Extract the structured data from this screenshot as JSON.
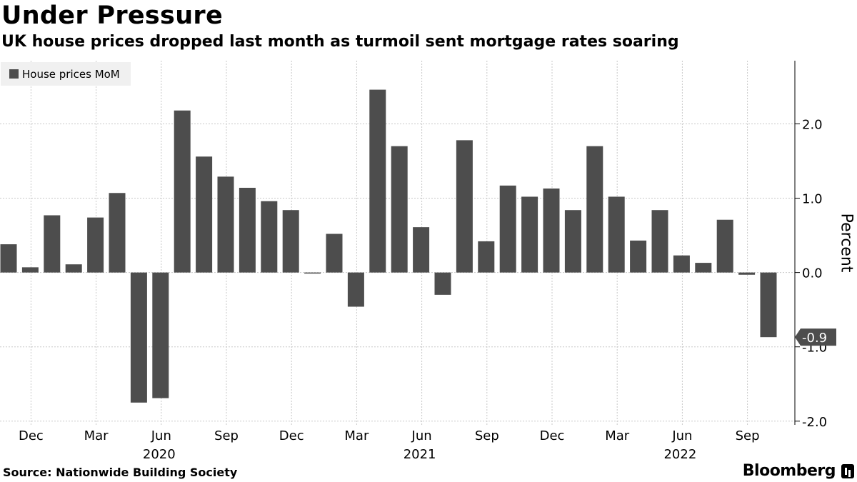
{
  "chart_data": {
    "type": "bar",
    "title": "Under Pressure",
    "subtitle": "UK house prices dropped last month as turmoil sent mortgage rates soaring",
    "legend": [
      "House prices MoM"
    ],
    "legend_position": "top-left",
    "ylabel": "Percent",
    "xlabel": "",
    "ylim": [
      -2.05,
      2.85
    ],
    "yticks": [
      {
        "value": 2,
        "label": "2.0"
      },
      {
        "value": 1,
        "label": "1.0"
      },
      {
        "value": 0,
        "label": "0.0"
      },
      {
        "value": -1,
        "label": "-1.0"
      },
      {
        "value": -2,
        "label": "-2.0"
      }
    ],
    "categories": [
      "Nov 2019",
      "Dec 2019",
      "Jan 2020",
      "Feb 2020",
      "Mar 2020",
      "Apr 2020",
      "May 2020",
      "Jun 2020",
      "Jul 2020",
      "Aug 2020",
      "Sep 2020",
      "Oct 2020",
      "Nov 2020",
      "Dec 2020",
      "Jan 2021",
      "Feb 2021",
      "Mar 2021",
      "Apr 2021",
      "May 2021",
      "Jun 2021",
      "Jul 2021",
      "Aug 2021",
      "Sep 2021",
      "Oct 2021",
      "Nov 2021",
      "Dec 2021",
      "Jan 2022",
      "Feb 2022",
      "Mar 2022",
      "Apr 2022",
      "May 2022",
      "Jun 2022",
      "Jul 2022",
      "Aug 2022",
      "Sep 2022",
      "Oct 2022"
    ],
    "series": [
      {
        "name": "House prices MoM",
        "values": [
          0.38,
          0.07,
          0.77,
          0.11,
          0.74,
          1.07,
          -1.75,
          -1.69,
          2.18,
          1.56,
          1.29,
          1.14,
          0.96,
          0.84,
          -0.01,
          0.52,
          -0.46,
          2.46,
          1.7,
          0.61,
          -0.3,
          1.78,
          0.42,
          1.17,
          1.02,
          1.13,
          0.84,
          1.7,
          1.02,
          0.43,
          0.84,
          0.23,
          0.13,
          0.71,
          -0.03,
          -0.87
        ]
      }
    ],
    "xtick_labels": [
      {
        "index": 1,
        "label": "Dec"
      },
      {
        "index": 4,
        "label": "Mar"
      },
      {
        "index": 7,
        "label": "Jun"
      },
      {
        "index": 10,
        "label": "Sep"
      },
      {
        "index": 13,
        "label": "Dec"
      },
      {
        "index": 16,
        "label": "Mar"
      },
      {
        "index": 19,
        "label": "Jun"
      },
      {
        "index": 22,
        "label": "Sep"
      },
      {
        "index": 25,
        "label": "Dec"
      },
      {
        "index": 28,
        "label": "Mar"
      },
      {
        "index": 31,
        "label": "Jun"
      },
      {
        "index": 34,
        "label": "Sep"
      }
    ],
    "year_labels": [
      {
        "index": 7,
        "label": "2020"
      },
      {
        "index": 19,
        "label": "2021"
      },
      {
        "index": 31,
        "label": "2022"
      }
    ],
    "last_value_label": "-0.9",
    "grid": true,
    "colors": {
      "bar": "#4d4d4d",
      "grid": "#c8c8c8",
      "axis": "#000000"
    }
  },
  "footer": {
    "source": "Source: Nationwide Building Society",
    "brand": "Bloomberg"
  }
}
